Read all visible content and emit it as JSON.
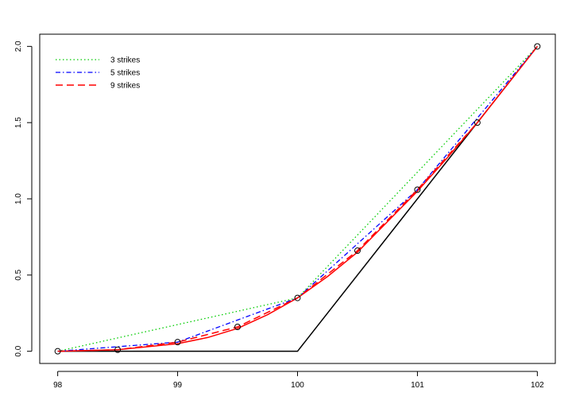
{
  "chart_data": {
    "type": "line",
    "title": "",
    "xlabel": "",
    "ylabel": "",
    "xlim": [
      97.85,
      102.15
    ],
    "ylim": [
      -0.08,
      2.08
    ],
    "x_ticks": [
      98,
      99,
      100,
      101,
      102
    ],
    "y_ticks": [
      0.0,
      0.5,
      1.0,
      1.5,
      2.0
    ],
    "x_tick_labels": [
      "98",
      "99",
      "100",
      "101",
      "102"
    ],
    "y_tick_labels": [
      "0.0",
      "0.5",
      "1.0",
      "1.5",
      "2.0"
    ],
    "legend_position": "top-left",
    "series": [
      {
        "style": "solid",
        "color": "#000000",
        "x": [
          98,
          100,
          102
        ],
        "y": [
          0,
          0,
          2
        ]
      },
      {
        "style": "solid",
        "color": "#ff0000",
        "x": [
          98,
          98.5,
          99,
          99.25,
          99.5,
          99.75,
          100,
          100.25,
          100.5,
          100.75,
          101,
          101.25,
          101.5,
          101.75,
          102
        ],
        "y": [
          0.0,
          0.01,
          0.05,
          0.09,
          0.15,
          0.24,
          0.35,
          0.49,
          0.65,
          0.85,
          1.05,
          1.27,
          1.5,
          1.75,
          2.0
        ]
      },
      {
        "name": "3 strikes",
        "style": "dotted",
        "color": "#00cc00",
        "x": [
          98,
          100,
          102
        ],
        "y": [
          0.0,
          0.35,
          2.0
        ]
      },
      {
        "name": "5 strikes",
        "style": "dashdot",
        "color": "#0000ff",
        "x": [
          98,
          99,
          100,
          101,
          102
        ],
        "y": [
          0.0,
          0.06,
          0.35,
          1.06,
          2.0
        ]
      },
      {
        "name": "9 strikes",
        "style": "dashed",
        "color": "#ff0000",
        "x": [
          98,
          98.5,
          99,
          99.5,
          100,
          100.5,
          101,
          101.5,
          102
        ],
        "y": [
          0.0,
          0.01,
          0.06,
          0.16,
          0.35,
          0.66,
          1.06,
          1.5,
          2.0
        ]
      }
    ],
    "markers": {
      "shape": "open-circle",
      "color": "#000000",
      "x": [
        98,
        98.5,
        99,
        99.5,
        100,
        100.5,
        101,
        101.5,
        102
      ],
      "y": [
        0.0,
        0.01,
        0.06,
        0.16,
        0.35,
        0.66,
        1.06,
        1.5,
        2.0
      ]
    }
  }
}
